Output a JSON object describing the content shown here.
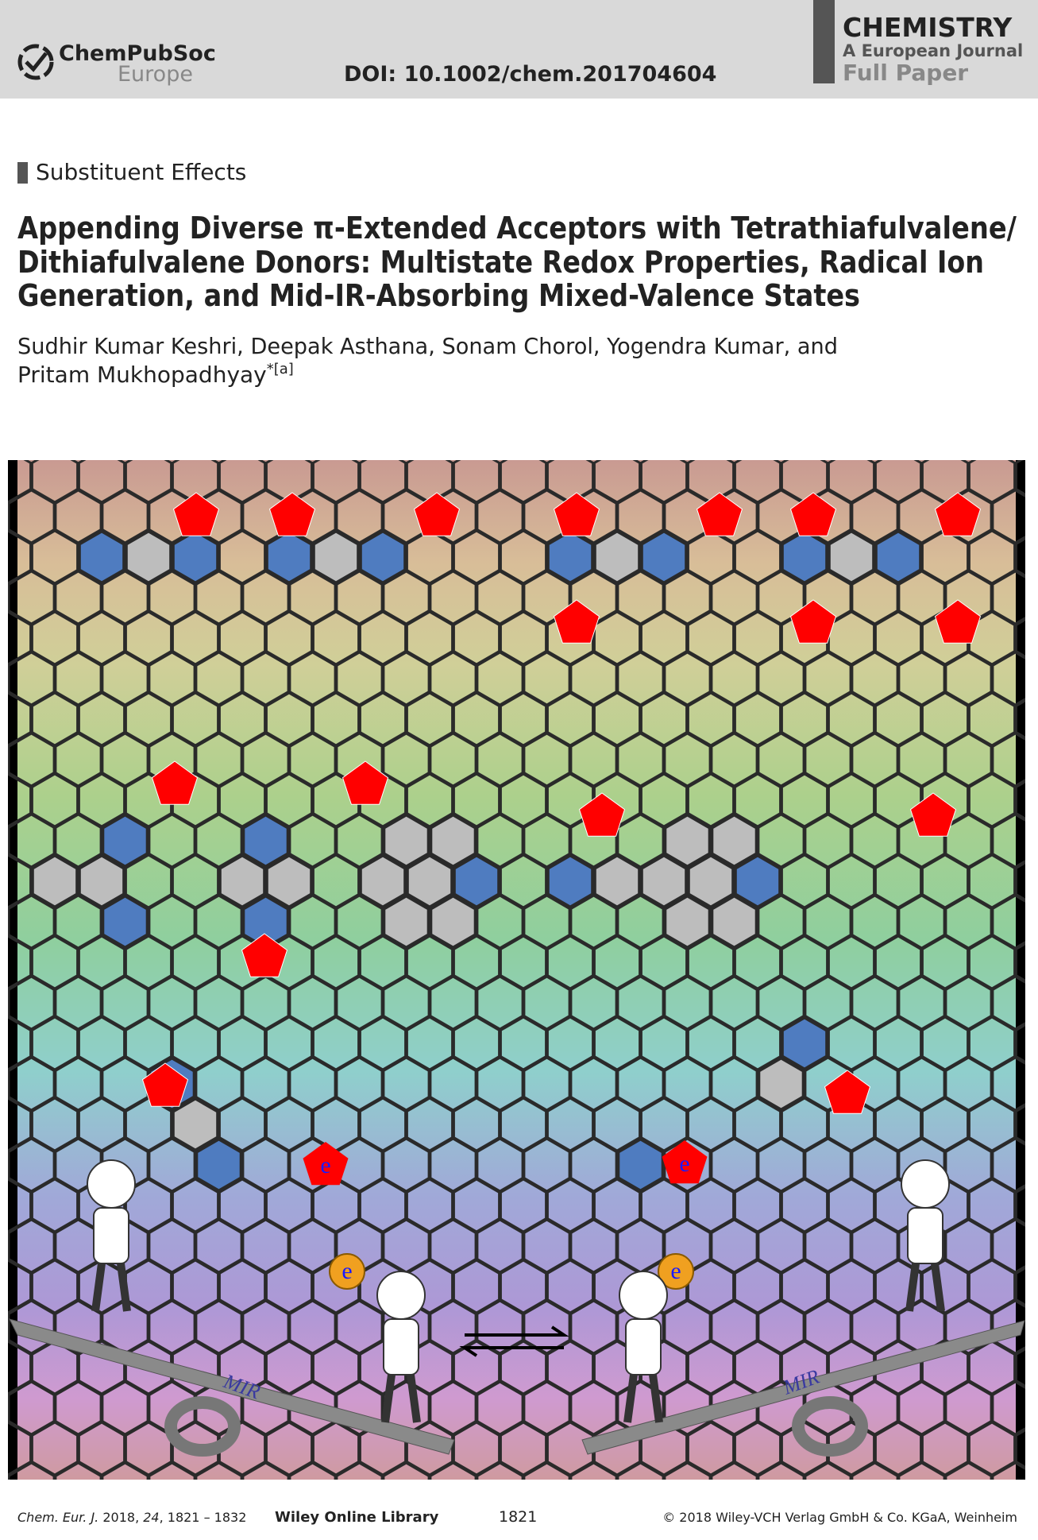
{
  "header": {
    "society": "ChemPubSoc",
    "society_region": "Europe",
    "doi": "DOI: 10.1002/chem.201704604",
    "journal": "CHEMISTRY",
    "journal_subtitle": "A European Journal",
    "article_type": "Full Paper"
  },
  "section": "Substituent Effects",
  "title_lines": [
    "Appending Diverse π-Extended Acceptors with Tetrathiafulvalene/",
    "Dithiafulvalene Donors: Multistate Redox Properties, Radical Ion",
    "Generation, and Mid-IR-Absorbing Mixed-Valence States"
  ],
  "authors": {
    "line1": "Sudhir Kumar Keshri, Deepak Asthana, Sonam Chorol, Yogendra Kumar, and",
    "line2": "Pritam Mukhopadhyay",
    "mark": "*[a]"
  },
  "figure": {
    "electron_labels": [
      "e",
      "e",
      "e",
      "e"
    ],
    "seesaw_labels": [
      "MIR",
      "MIR"
    ]
  },
  "footer": {
    "journal": "Chem. Eur. J.",
    "year": "2018",
    "volume": "24",
    "pages": "1821 – 1832",
    "library": "Wiley Online Library",
    "page_number": "1821",
    "copyright": "© 2018 Wiley-VCH Verlag GmbH & Co. KGaA, Weinheim"
  }
}
